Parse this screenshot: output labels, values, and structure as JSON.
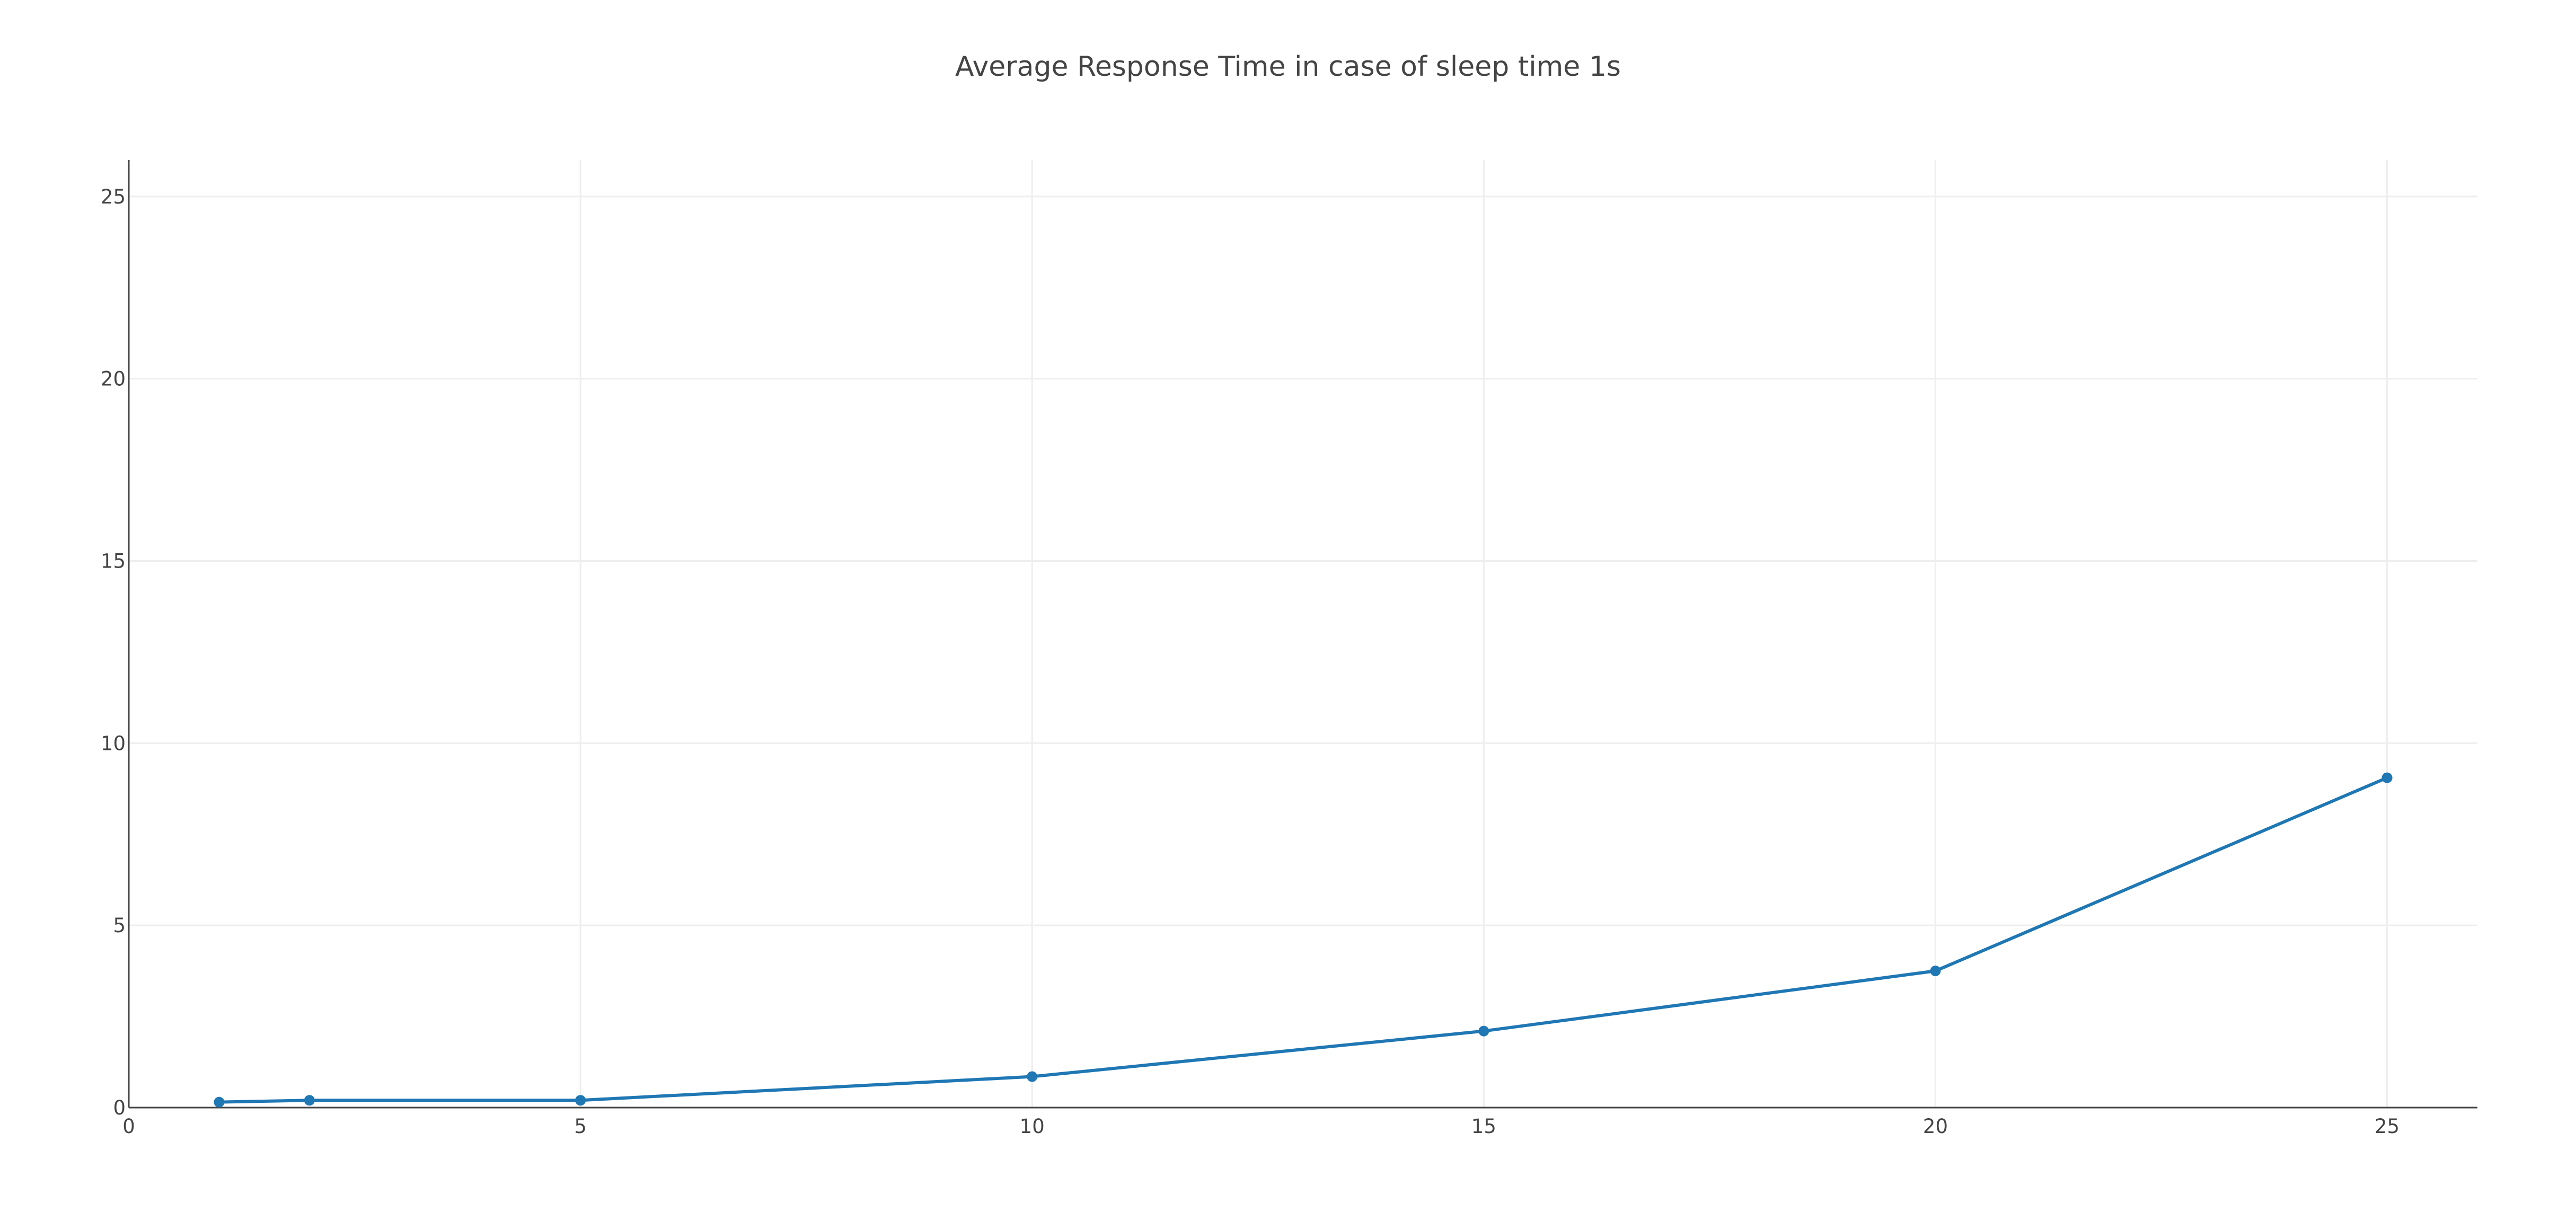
{
  "chart_data": {
    "type": "line",
    "title": "Average Response Time in case of sleep time 1s",
    "xlabel": "",
    "ylabel": "",
    "xlim": [
      0,
      26
    ],
    "ylim": [
      0,
      26
    ],
    "x_ticks": [
      0,
      5,
      10,
      15,
      20,
      25
    ],
    "y_ticks": [
      0,
      5,
      10,
      15,
      20,
      25
    ],
    "grid": true,
    "legend": "none",
    "series": [
      {
        "color": "#1f77b4",
        "x": [
          1,
          2,
          5,
          10,
          15,
          20,
          25
        ],
        "y": [
          0.15,
          0.2,
          0.2,
          0.85,
          2.1,
          3.75,
          9.05
        ]
      }
    ]
  }
}
